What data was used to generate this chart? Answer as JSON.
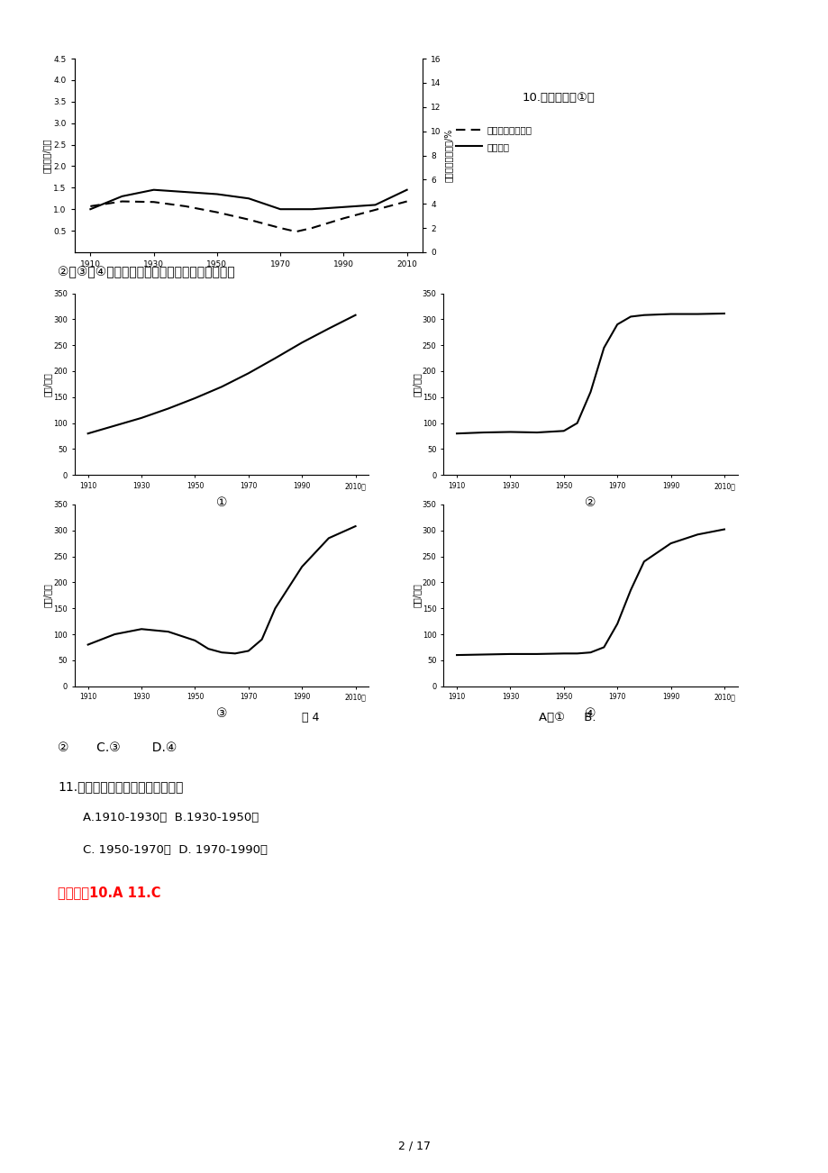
{
  "bg_color": "#ffffff",
  "page_text": "2 / 17",
  "main_chart": {
    "title_left": "劳民人数/百万",
    "title_right": "劳民占总人口比例/%",
    "x_ticks": [
      1910,
      1930,
      1950,
      1970,
      1990,
      2010
    ],
    "left_ylim": [
      0,
      4.5
    ],
    "right_ylim": [
      0,
      16
    ],
    "left_yticks": [
      0.5,
      1.0,
      1.5,
      2.0,
      2.5,
      3.0,
      3.5,
      4.0,
      4.5
    ],
    "right_yticks": [
      0,
      2,
      4,
      6,
      8,
      10,
      12,
      14,
      16
    ],
    "solid_x": [
      1910,
      1920,
      1930,
      1940,
      1950,
      1960,
      1970,
      1975,
      1980,
      1990,
      2000,
      2010
    ],
    "solid_y": [
      1.0,
      1.3,
      1.45,
      1.4,
      1.35,
      1.25,
      1.0,
      1.0,
      1.0,
      1.05,
      1.1,
      1.45
    ],
    "dashed_x": [
      1910,
      1920,
      1930,
      1940,
      1950,
      1960,
      1970,
      1975,
      1980,
      1990,
      2000,
      2010
    ],
    "dashed_y": [
      3.8,
      4.2,
      4.15,
      3.8,
      3.3,
      2.7,
      2.0,
      1.7,
      2.0,
      2.8,
      3.5,
      4.2
    ],
    "legend_dashed": "劳民占总人口比例",
    "legend_solid": "劳民人数"
  },
  "question10_text": "10.下图所示的①、",
  "question_text": "②、③、④四幅图中，符合该国人口增长特点的是",
  "sub_charts": [
    {
      "label": "①",
      "ylabel": "人数/百万",
      "ylim": [
        0,
        350
      ],
      "yticks": [
        0,
        50,
        100,
        150,
        200,
        250,
        300,
        350
      ],
      "x": [
        1910,
        1920,
        1930,
        1940,
        1950,
        1960,
        1970,
        1980,
        1990,
        2000,
        2010
      ],
      "y": [
        80,
        95,
        110,
        128,
        148,
        170,
        196,
        225,
        255,
        282,
        308
      ]
    },
    {
      "label": "②",
      "ylabel": "人数/百万",
      "ylim": [
        0,
        350
      ],
      "yticks": [
        0,
        50,
        100,
        150,
        200,
        250,
        300,
        350
      ],
      "x": [
        1910,
        1920,
        1930,
        1940,
        1950,
        1955,
        1960,
        1965,
        1970,
        1975,
        1980,
        1990,
        2000,
        2010
      ],
      "y": [
        80,
        82,
        83,
        82,
        85,
        100,
        160,
        245,
        290,
        305,
        308,
        310,
        310,
        311
      ]
    },
    {
      "label": "③",
      "ylabel": "人数/百万",
      "ylim": [
        0,
        350
      ],
      "yticks": [
        0,
        50,
        100,
        150,
        200,
        250,
        300,
        350
      ],
      "x": [
        1910,
        1920,
        1930,
        1940,
        1950,
        1955,
        1960,
        1965,
        1970,
        1975,
        1980,
        1990,
        2000,
        2010
      ],
      "y": [
        80,
        100,
        110,
        105,
        88,
        72,
        65,
        63,
        68,
        90,
        150,
        230,
        285,
        308
      ]
    },
    {
      "label": "④",
      "ylabel": "人数/百万",
      "ylim": [
        0,
        350
      ],
      "yticks": [
        0,
        50,
        100,
        150,
        200,
        250,
        300,
        350
      ],
      "x": [
        1910,
        1920,
        1930,
        1940,
        1950,
        1955,
        1960,
        1965,
        1970,
        1975,
        1980,
        1990,
        2000,
        2010
      ],
      "y": [
        60,
        61,
        62,
        62,
        63,
        63,
        65,
        75,
        120,
        185,
        240,
        275,
        292,
        302
      ]
    }
  ],
  "fig4_label": "图 4",
  "answer_label": "A．①     B.",
  "answer_line2": "②       C.③        D.④",
  "q11_title": "11.该国人口增长数量最多的时段为",
  "q11_A": "A.1910-1930年  B.1930-1950年",
  "q11_CD": "C. 1950-1970年  D. 1970-1990年",
  "answer_box": "【答案、10.A 11.C"
}
